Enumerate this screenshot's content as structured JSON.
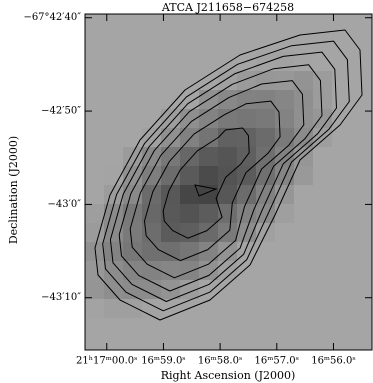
{
  "chart_data": {
    "type": "contour",
    "title": "ATCA J211658−674258",
    "x_label": "Right Ascension (J2000)",
    "y_label": "Declination (J2000)",
    "xlim": [
      319.2516,
      319.2305
    ],
    "ylim": [
      -67.721,
      -67.711
    ],
    "xticks": [
      {
        "value": 319.25,
        "label": "21ʰ17ᵐ00.0ˢ"
      },
      {
        "value": 319.245833,
        "label": "16ᵐ59.0ˢ"
      },
      {
        "value": 319.241667,
        "label": "16ᵐ58.0ˢ"
      },
      {
        "value": 319.2375,
        "label": "16ᵐ57.0ˢ"
      },
      {
        "value": 319.233333,
        "label": "16ᵐ56.0ˢ"
      }
    ],
    "yticks": [
      {
        "value": -67.711111,
        "label": "−67°42′40″"
      },
      {
        "value": -67.713889,
        "label": "−42′50″"
      },
      {
        "value": -67.716667,
        "label": "−43′0″"
      },
      {
        "value": -67.719444,
        "label": "−43′10″"
      }
    ]
  }
}
